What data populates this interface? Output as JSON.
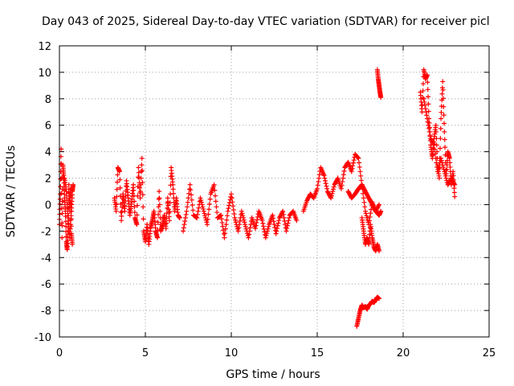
{
  "chart_data": {
    "type": "scatter",
    "title": "Day 043 of 2025, Sidereal Day-to-day VTEC variation (SDTVAR) for receiver picl",
    "xlabel": "GPS time / hours",
    "ylabel": "SDTVAR / TECUs",
    "xlim": [
      0,
      25
    ],
    "ylim": [
      -10,
      12
    ],
    "x_ticks": [
      "0",
      "5",
      "10",
      "15",
      "20",
      "25"
    ],
    "y_ticks": [
      "12",
      "10",
      "8",
      "6",
      "4",
      "2",
      "0",
      "-2",
      "-4",
      "-6",
      "-8",
      "-10"
    ],
    "x_tick_values": [
      0,
      5,
      10,
      15,
      20,
      25
    ],
    "y_tick_values": [
      12,
      10,
      8,
      6,
      4,
      2,
      0,
      -2,
      -4,
      -6,
      -8,
      -10
    ],
    "grid": true,
    "marker": "plus",
    "color": "#ff0000",
    "series": [
      {
        "name": "seg1",
        "x": [
          0.0,
          0.05,
          0.1,
          0.15,
          0.2,
          0.25,
          0.3,
          0.35,
          0.4,
          0.45,
          0.5,
          0.55,
          0.6,
          0.65,
          0.7,
          0.75
        ],
        "y": [
          -1.5,
          0.8,
          4.2,
          -2.5,
          3.0,
          2.2,
          0.5,
          -0.5,
          -2.8,
          -3.4,
          -2.0,
          1.5,
          -0.5,
          1.2,
          -2.2,
          -3.0
        ]
      },
      {
        "name": "seg1b",
        "x": [
          0.3,
          0.4,
          0.5,
          0.6,
          0.7,
          0.75,
          0.8
        ],
        "y": [
          2.0,
          1.0,
          -1.0,
          -2.5,
          -0.5,
          1.0,
          1.5
        ]
      },
      {
        "name": "seg2",
        "x": [
          3.2,
          3.3,
          3.4,
          3.5,
          3.6,
          3.7,
          3.8,
          3.9,
          4.0,
          4.1,
          4.2,
          4.3,
          4.4,
          4.5,
          4.6,
          4.7,
          4.8,
          4.9,
          5.0,
          5.1,
          5.2,
          5.3,
          5.4,
          5.5,
          5.6,
          5.7,
          5.8,
          5.9,
          6.0,
          6.1,
          6.2,
          6.3,
          6.4,
          6.5,
          6.6,
          6.7,
          6.8,
          6.9,
          7.0
        ],
        "y": [
          0.5,
          -0.5,
          2.8,
          2.5,
          -1.2,
          0.8,
          -0.5,
          1.8,
          0.5,
          -0.8,
          0.2,
          1.5,
          -1.0,
          -1.5,
          2.8,
          0.5,
          3.5,
          -2.0,
          -2.8,
          -1.5,
          -3.0,
          -1.8,
          -1.2,
          -0.5,
          -2.0,
          -2.5,
          1.0,
          -2.0,
          -1.5,
          -0.8,
          -1.8,
          0.5,
          -1.2,
          2.8,
          1.5,
          -0.5,
          0.5,
          -0.8,
          -1.0
        ]
      },
      {
        "name": "seg3",
        "x": [
          7.2,
          7.4,
          7.6,
          7.8,
          8.0,
          8.2,
          8.4,
          8.6,
          8.8,
          9.0,
          9.2,
          9.4,
          9.6,
          9.8,
          10.0,
          10.2,
          10.4,
          10.6,
          10.8,
          11.0,
          11.2,
          11.4,
          11.6,
          11.8,
          12.0,
          12.2,
          12.4,
          12.6,
          12.8,
          13.0,
          13.2,
          13.4,
          13.6,
          13.8
        ],
        "y": [
          -2.0,
          -0.5,
          1.5,
          -0.8,
          -1.0,
          0.5,
          -0.5,
          -1.5,
          0.8,
          1.5,
          -1.0,
          -0.8,
          -2.5,
          -0.5,
          0.8,
          -1.0,
          -2.0,
          -0.5,
          -1.5,
          -2.5,
          -1.0,
          -1.8,
          -0.5,
          -1.2,
          -2.5,
          -1.5,
          -0.8,
          -2.2,
          -1.0,
          -0.5,
          -2.0,
          -0.8,
          -0.5,
          -1.2
        ]
      },
      {
        "name": "seg4",
        "x": [
          14.2,
          14.4,
          14.6,
          14.8,
          15.0,
          15.2,
          15.4,
          15.6,
          15.8,
          16.0,
          16.2,
          16.4,
          16.6,
          16.8,
          17.0,
          17.2,
          17.4,
          17.6,
          17.8,
          18.0,
          18.2,
          18.4,
          18.6
        ],
        "y": [
          -0.5,
          0.3,
          0.8,
          0.5,
          1.2,
          2.8,
          2.2,
          1.0,
          0.5,
          1.5,
          2.0,
          1.2,
          2.8,
          3.2,
          2.5,
          3.8,
          3.5,
          1.5,
          -0.5,
          -1.5,
          0.2,
          -0.5,
          0.0
        ]
      },
      {
        "name": "seg4b",
        "x": [
          16.8,
          17.0,
          17.2,
          17.4,
          17.6,
          17.8,
          18.0,
          18.2,
          18.4,
          18.6,
          18.7
        ],
        "y": [
          1.0,
          0.5,
          0.8,
          1.2,
          1.5,
          1.0,
          0.5,
          0.0,
          -0.5,
          -0.8,
          -0.5
        ]
      },
      {
        "name": "seg5",
        "x": [
          17.6,
          17.7,
          17.8,
          17.9,
          18.0,
          18.1,
          18.2,
          18.3,
          18.4,
          18.5,
          18.6
        ],
        "y": [
          -1.0,
          -2.0,
          -3.0,
          -2.5,
          -3.0,
          -1.5,
          -2.5,
          -3.2,
          -3.5,
          -3.0,
          -3.5
        ]
      },
      {
        "name": "seg6",
        "x": [
          18.5,
          18.55,
          18.6,
          18.65,
          18.7
        ],
        "y": [
          10.2,
          9.5,
          9.0,
          8.5,
          8.1
        ]
      },
      {
        "name": "seg7",
        "x": [
          17.3,
          17.4,
          17.5,
          17.6,
          17.7,
          17.8,
          17.9,
          18.0,
          18.1,
          18.2,
          18.3,
          18.4,
          18.5,
          18.6
        ],
        "y": [
          -9.2,
          -8.6,
          -8.0,
          -7.6,
          -7.8,
          -7.7,
          -7.9,
          -7.6,
          -7.5,
          -7.3,
          -7.4,
          -7.2,
          -7.0,
          -7.1
        ]
      },
      {
        "name": "seg8",
        "x": [
          21.0,
          21.1,
          21.2,
          21.3,
          21.4,
          21.5,
          21.6,
          21.7,
          21.8,
          21.9,
          22.0,
          22.1,
          22.2,
          22.3,
          22.4,
          22.5,
          22.6,
          22.7,
          22.8,
          22.9,
          23.0
        ],
        "y": [
          8.5,
          7.0,
          10.2,
          9.5,
          9.8,
          6.5,
          4.5,
          3.5,
          5.0,
          6.0,
          3.0,
          2.0,
          6.5,
          9.3,
          5.5,
          2.0,
          4.0,
          3.5,
          1.5,
          2.5,
          0.6
        ]
      },
      {
        "name": "seg8b",
        "x": [
          21.2,
          21.4,
          21.6,
          21.8,
          22.0,
          22.2,
          22.4,
          22.6,
          22.8,
          23.0
        ],
        "y": [
          8.0,
          6.5,
          5.0,
          4.5,
          2.5,
          3.5,
          2.5,
          1.5,
          2.0,
          1.5
        ]
      }
    ]
  }
}
